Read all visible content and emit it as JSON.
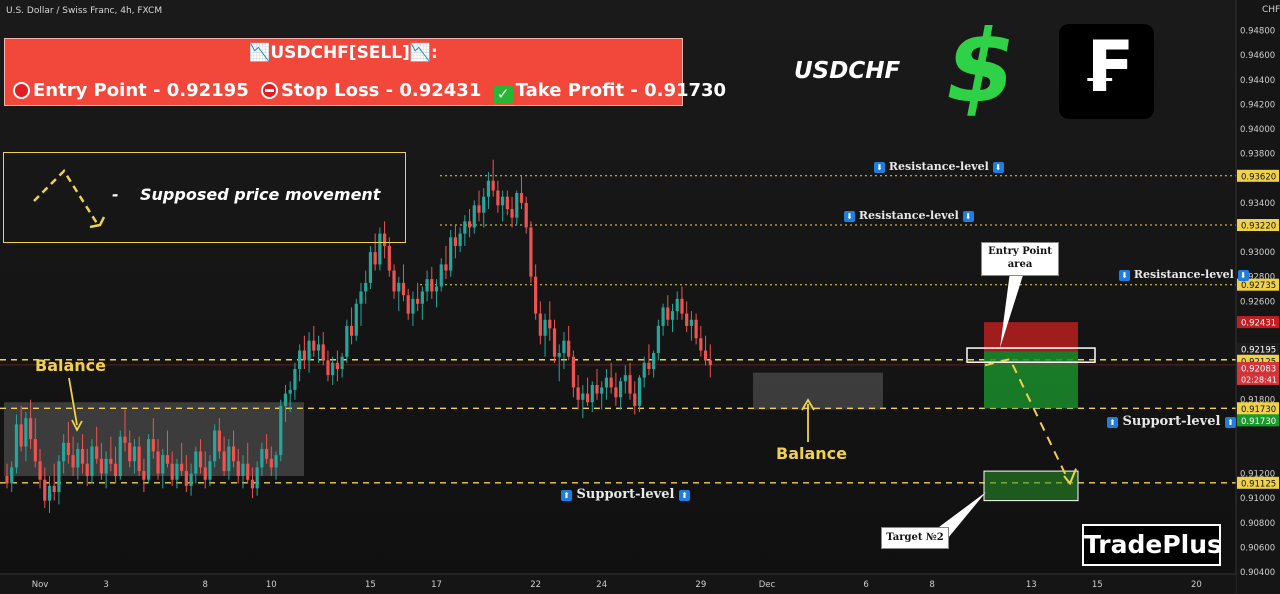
{
  "symbol_line": "U.S. Dollar / Swiss Franc, 4h, FXCM",
  "headline": {
    "title": "📉USDCHF[SELL]📉:",
    "entry": "Entry Point - 0.92195",
    "stop": "Stop Loss - 0.92431",
    "take": "Take Profit - 0.91730"
  },
  "legend_text": "Supposed price movement",
  "legend_dash": "-",
  "pair_label": "USDCHF",
  "logo_text": "TradePlus",
  "franc_glyph": "₣",
  "dollar_glyph": "$",
  "check_glyph": "✓",
  "annotations": {
    "resistance_1": "Resistance-level",
    "resistance_2": "Resistance-level",
    "resistance_3": "Resistance-level",
    "support_1": "Support-level",
    "support_2": "Support-level",
    "balance_1": "Balance",
    "balance_2": "Balance",
    "entry_area": "Entry Point area",
    "target": "Target №2",
    "down_arrow": "⬇",
    "up_arrow": "⬆"
  },
  "colors": {
    "bull": "#26a69a",
    "bear": "#ef5350",
    "level_line": "#f0d24a",
    "headline_bg": "#f2473b",
    "stop_zone": "#b7201f",
    "profit_zone": "#1a8c2a",
    "dollar": "#2fd246"
  },
  "chart_data": {
    "type": "candlestick",
    "currency_label": "CHF",
    "ylim": [
      0.904,
      0.95
    ],
    "y_ticks": [
      "0.94800",
      "0.94600",
      "0.94400",
      "0.94200",
      "0.94000",
      "0.93800",
      "0.93400",
      "0.93000",
      "0.92800",
      "0.92600",
      "0.91800",
      "0.91200",
      "0.91000",
      "0.90800",
      "0.90600",
      "0.90400"
    ],
    "x_ticks": [
      {
        "label": "Nov",
        "idx": 7
      },
      {
        "label": "3",
        "idx": 21
      },
      {
        "label": "8",
        "idx": 42
      },
      {
        "label": "10",
        "idx": 56
      },
      {
        "label": "15",
        "idx": 77
      },
      {
        "label": "17",
        "idx": 91
      },
      {
        "label": "22",
        "idx": 112
      },
      {
        "label": "24",
        "idx": 126
      },
      {
        "label": "29",
        "idx": 147
      },
      {
        "label": "Dec",
        "idx": 161
      },
      {
        "label": "6",
        "idx": 182
      },
      {
        "label": "8",
        "idx": 196
      },
      {
        "label": "13",
        "idx": 217
      },
      {
        "label": "15",
        "idx": 231
      },
      {
        "label": "20",
        "idx": 252
      }
    ],
    "levels": [
      {
        "value": 0.9362,
        "label": "0.93620",
        "style": "dotted"
      },
      {
        "value": 0.9322,
        "label": "0.93220",
        "style": "dotted"
      },
      {
        "value": 0.92735,
        "label": "0.92735",
        "style": "dotted"
      },
      {
        "value": 0.92125,
        "label": "0.92125",
        "style": "dashed"
      },
      {
        "value": 0.9173,
        "label": "0.91730",
        "style": "dashed"
      },
      {
        "value": 0.91125,
        "label": "0.91125",
        "style": "dashed"
      }
    ],
    "price_tags": [
      {
        "value": 0.92431,
        "label": "0.92431",
        "color": "#c01e22"
      },
      {
        "value": 0.92195,
        "label": "0.92195",
        "color": "#1e1e1e"
      },
      {
        "value": 0.92125,
        "label": "0.92125",
        "color": "#f0d24a"
      },
      {
        "value": 0.92083,
        "label": "0.92083",
        "color": "#d2363a"
      },
      {
        "value": 0.9173,
        "label": "0.91730",
        "color": "#f0d24a"
      },
      {
        "value": 0.9173,
        "label": "0.91730",
        "color": "#189a2c",
        "offset": 1
      }
    ],
    "countdown": "02:28:41",
    "trade": {
      "entry": 0.92195,
      "stop": 0.92431,
      "take_profit": 0.9173,
      "target_2": 0.91125
    },
    "candles": [
      [
        0.9118,
        0.9128,
        0.9108,
        0.9112
      ],
      [
        0.9112,
        0.913,
        0.9105,
        0.9125
      ],
      [
        0.9125,
        0.9168,
        0.912,
        0.916
      ],
      [
        0.916,
        0.9175,
        0.9138,
        0.9142
      ],
      [
        0.9142,
        0.917,
        0.913,
        0.9165
      ],
      [
        0.9165,
        0.918,
        0.914,
        0.9148
      ],
      [
        0.9148,
        0.9165,
        0.9125,
        0.913
      ],
      [
        0.913,
        0.914,
        0.9108,
        0.9115
      ],
      [
        0.9115,
        0.9125,
        0.9092,
        0.9098
      ],
      [
        0.9098,
        0.9118,
        0.9088,
        0.911
      ],
      [
        0.911,
        0.9128,
        0.9098,
        0.9105
      ],
      [
        0.9105,
        0.9135,
        0.9095,
        0.913
      ],
      [
        0.913,
        0.9152,
        0.912,
        0.9145
      ],
      [
        0.9145,
        0.9162,
        0.9128,
        0.9135
      ],
      [
        0.9135,
        0.915,
        0.9118,
        0.9125
      ],
      [
        0.9125,
        0.9145,
        0.9115,
        0.914
      ],
      [
        0.914,
        0.9152,
        0.912,
        0.9128
      ],
      [
        0.9128,
        0.914,
        0.911,
        0.9118
      ],
      [
        0.9118,
        0.9148,
        0.9112,
        0.9142
      ],
      [
        0.9142,
        0.9158,
        0.9128,
        0.9132
      ],
      [
        0.9132,
        0.9145,
        0.9115,
        0.912
      ],
      [
        0.912,
        0.9138,
        0.9108,
        0.9132
      ],
      [
        0.9132,
        0.915,
        0.9122,
        0.9128
      ],
      [
        0.9128,
        0.9142,
        0.9112,
        0.9118
      ],
      [
        0.9118,
        0.9155,
        0.9115,
        0.915
      ],
      [
        0.915,
        0.9172,
        0.9138,
        0.9145
      ],
      [
        0.9145,
        0.9155,
        0.9125,
        0.913
      ],
      [
        0.913,
        0.9148,
        0.912,
        0.9142
      ],
      [
        0.9142,
        0.915,
        0.9118,
        0.9122
      ],
      [
        0.9122,
        0.9132,
        0.9105,
        0.9115
      ],
      [
        0.9115,
        0.9152,
        0.9112,
        0.9148
      ],
      [
        0.9148,
        0.9165,
        0.9132,
        0.9138
      ],
      [
        0.9138,
        0.9148,
        0.9115,
        0.912
      ],
      [
        0.912,
        0.914,
        0.9108,
        0.9135
      ],
      [
        0.9135,
        0.9155,
        0.9125,
        0.9128
      ],
      [
        0.9128,
        0.9138,
        0.911,
        0.9115
      ],
      [
        0.9115,
        0.9132,
        0.9108,
        0.9128
      ],
      [
        0.9128,
        0.9145,
        0.9118,
        0.9122
      ],
      [
        0.9122,
        0.9135,
        0.9105,
        0.911
      ],
      [
        0.911,
        0.9128,
        0.9102,
        0.912
      ],
      [
        0.912,
        0.9142,
        0.9112,
        0.9138
      ],
      [
        0.9138,
        0.9148,
        0.912,
        0.9125
      ],
      [
        0.9125,
        0.9138,
        0.9108,
        0.9115
      ],
      [
        0.9115,
        0.9135,
        0.911,
        0.913
      ],
      [
        0.913,
        0.916,
        0.9125,
        0.9155
      ],
      [
        0.9155,
        0.9165,
        0.9132,
        0.9138
      ],
      [
        0.9138,
        0.915,
        0.9118,
        0.9122
      ],
      [
        0.9122,
        0.9148,
        0.9115,
        0.9142
      ],
      [
        0.9142,
        0.9155,
        0.9125,
        0.913
      ],
      [
        0.913,
        0.914,
        0.9112,
        0.9118
      ],
      [
        0.9118,
        0.9135,
        0.9108,
        0.9128
      ],
      [
        0.9128,
        0.9145,
        0.9112,
        0.9115
      ],
      [
        0.9115,
        0.9125,
        0.91,
        0.9108
      ],
      [
        0.9108,
        0.913,
        0.9102,
        0.9125
      ],
      [
        0.9125,
        0.9145,
        0.9118,
        0.914
      ],
      [
        0.914,
        0.9152,
        0.9128,
        0.9132
      ],
      [
        0.9132,
        0.9142,
        0.9118,
        0.9125
      ],
      [
        0.9125,
        0.9138,
        0.9115,
        0.9135
      ],
      [
        0.9135,
        0.918,
        0.913,
        0.9175
      ],
      [
        0.9175,
        0.9192,
        0.9162,
        0.9185
      ],
      [
        0.9185,
        0.9195,
        0.917,
        0.9188
      ],
      [
        0.9188,
        0.921,
        0.918,
        0.9205
      ],
      [
        0.9205,
        0.9225,
        0.9195,
        0.922
      ],
      [
        0.922,
        0.9232,
        0.9205,
        0.9212
      ],
      [
        0.9212,
        0.9235,
        0.9202,
        0.9228
      ],
      [
        0.9228,
        0.924,
        0.9215,
        0.922
      ],
      [
        0.922,
        0.9232,
        0.921,
        0.9225
      ],
      [
        0.9225,
        0.9235,
        0.9208,
        0.9212
      ],
      [
        0.9212,
        0.922,
        0.9195,
        0.92
      ],
      [
        0.92,
        0.9215,
        0.9192,
        0.921
      ],
      [
        0.921,
        0.922,
        0.9195,
        0.9205
      ],
      [
        0.9205,
        0.9218,
        0.9198,
        0.9215
      ],
      [
        0.9215,
        0.9245,
        0.921,
        0.924
      ],
      [
        0.924,
        0.9255,
        0.9225,
        0.9232
      ],
      [
        0.9232,
        0.9262,
        0.9228,
        0.9258
      ],
      [
        0.9258,
        0.9275,
        0.924,
        0.9268
      ],
      [
        0.9268,
        0.9285,
        0.9258,
        0.9275
      ],
      [
        0.9275,
        0.9305,
        0.927,
        0.93
      ],
      [
        0.93,
        0.9315,
        0.9285,
        0.929
      ],
      [
        0.929,
        0.932,
        0.9285,
        0.9315
      ],
      [
        0.9315,
        0.9325,
        0.9295,
        0.9305
      ],
      [
        0.9305,
        0.9312,
        0.928,
        0.9285
      ],
      [
        0.9285,
        0.929,
        0.9262,
        0.9268
      ],
      [
        0.9268,
        0.928,
        0.9252,
        0.9275
      ],
      [
        0.9275,
        0.929,
        0.926,
        0.9265
      ],
      [
        0.9265,
        0.927,
        0.9245,
        0.925
      ],
      [
        0.925,
        0.9268,
        0.924,
        0.9262
      ],
      [
        0.9262,
        0.9275,
        0.9252,
        0.9258
      ],
      [
        0.9258,
        0.9272,
        0.9245,
        0.9268
      ],
      [
        0.9268,
        0.9285,
        0.926,
        0.9278
      ],
      [
        0.9278,
        0.9288,
        0.9262,
        0.9268
      ],
      [
        0.9268,
        0.9278,
        0.9255,
        0.9272
      ],
      [
        0.9272,
        0.9295,
        0.9268,
        0.929
      ],
      [
        0.929,
        0.9305,
        0.9278,
        0.9285
      ],
      [
        0.9285,
        0.9318,
        0.928,
        0.9312
      ],
      [
        0.9312,
        0.9322,
        0.9295,
        0.9305
      ],
      [
        0.9305,
        0.932,
        0.93,
        0.9315
      ],
      [
        0.9315,
        0.933,
        0.9305,
        0.9325
      ],
      [
        0.9325,
        0.9335,
        0.9312,
        0.932
      ],
      [
        0.932,
        0.9342,
        0.9315,
        0.9338
      ],
      [
        0.9338,
        0.935,
        0.9325,
        0.9332
      ],
      [
        0.9332,
        0.9352,
        0.932,
        0.9345
      ],
      [
        0.9345,
        0.9365,
        0.9335,
        0.9358
      ],
      [
        0.9358,
        0.9375,
        0.9345,
        0.935
      ],
      [
        0.935,
        0.9358,
        0.9332,
        0.9338
      ],
      [
        0.9338,
        0.935,
        0.9325,
        0.9345
      ],
      [
        0.9345,
        0.935,
        0.933,
        0.9335
      ],
      [
        0.9335,
        0.9345,
        0.932,
        0.9328
      ],
      [
        0.9328,
        0.935,
        0.9322,
        0.9348
      ],
      [
        0.9348,
        0.9362,
        0.9335,
        0.934
      ],
      [
        0.934,
        0.9345,
        0.9315,
        0.932
      ],
      [
        0.932,
        0.9325,
        0.9275,
        0.928
      ],
      [
        0.928,
        0.929,
        0.9245,
        0.925
      ],
      [
        0.925,
        0.926,
        0.9225,
        0.9232
      ],
      [
        0.9232,
        0.925,
        0.9215,
        0.9245
      ],
      [
        0.9245,
        0.926,
        0.9228,
        0.9238
      ],
      [
        0.9238,
        0.9245,
        0.921,
        0.9215
      ],
      [
        0.9215,
        0.9225,
        0.9195,
        0.9218
      ],
      [
        0.9218,
        0.9235,
        0.9205,
        0.9228
      ],
      [
        0.9228,
        0.924,
        0.9212,
        0.9215
      ],
      [
        0.9215,
        0.922,
        0.9182,
        0.919
      ],
      [
        0.919,
        0.92,
        0.9172,
        0.918
      ],
      [
        0.918,
        0.9192,
        0.9165,
        0.9185
      ],
      [
        0.9185,
        0.9198,
        0.9175,
        0.9178
      ],
      [
        0.9178,
        0.9195,
        0.917,
        0.9192
      ],
      [
        0.9192,
        0.9205,
        0.918,
        0.9185
      ],
      [
        0.9185,
        0.9195,
        0.9172,
        0.919
      ],
      [
        0.919,
        0.9205,
        0.918,
        0.9198
      ],
      [
        0.9198,
        0.921,
        0.9185,
        0.919
      ],
      [
        0.919,
        0.9202,
        0.9175,
        0.9182
      ],
      [
        0.9182,
        0.9198,
        0.9172,
        0.9195
      ],
      [
        0.9195,
        0.9208,
        0.9185,
        0.92
      ],
      [
        0.92,
        0.921,
        0.918,
        0.9185
      ],
      [
        0.9185,
        0.9195,
        0.9168,
        0.9175
      ],
      [
        0.9175,
        0.92,
        0.917,
        0.9198
      ],
      [
        0.9198,
        0.9215,
        0.919,
        0.921
      ],
      [
        0.921,
        0.9225,
        0.92,
        0.9205
      ],
      [
        0.9205,
        0.922,
        0.9198,
        0.9218
      ],
      [
        0.9218,
        0.9245,
        0.9212,
        0.924
      ],
      [
        0.924,
        0.9258,
        0.9232,
        0.9255
      ],
      [
        0.9255,
        0.9265,
        0.924,
        0.9245
      ],
      [
        0.9245,
        0.9258,
        0.9235,
        0.9252
      ],
      [
        0.9252,
        0.9268,
        0.9245,
        0.9262
      ],
      [
        0.9262,
        0.9272,
        0.9245,
        0.925
      ],
      [
        0.925,
        0.926,
        0.9235,
        0.924
      ],
      [
        0.924,
        0.9252,
        0.9228,
        0.9245
      ],
      [
        0.9245,
        0.925,
        0.9225,
        0.923
      ],
      [
        0.923,
        0.924,
        0.9215,
        0.922
      ],
      [
        0.922,
        0.9232,
        0.9208,
        0.9212
      ],
      [
        0.9212,
        0.9225,
        0.9198,
        0.9208
      ]
    ]
  }
}
